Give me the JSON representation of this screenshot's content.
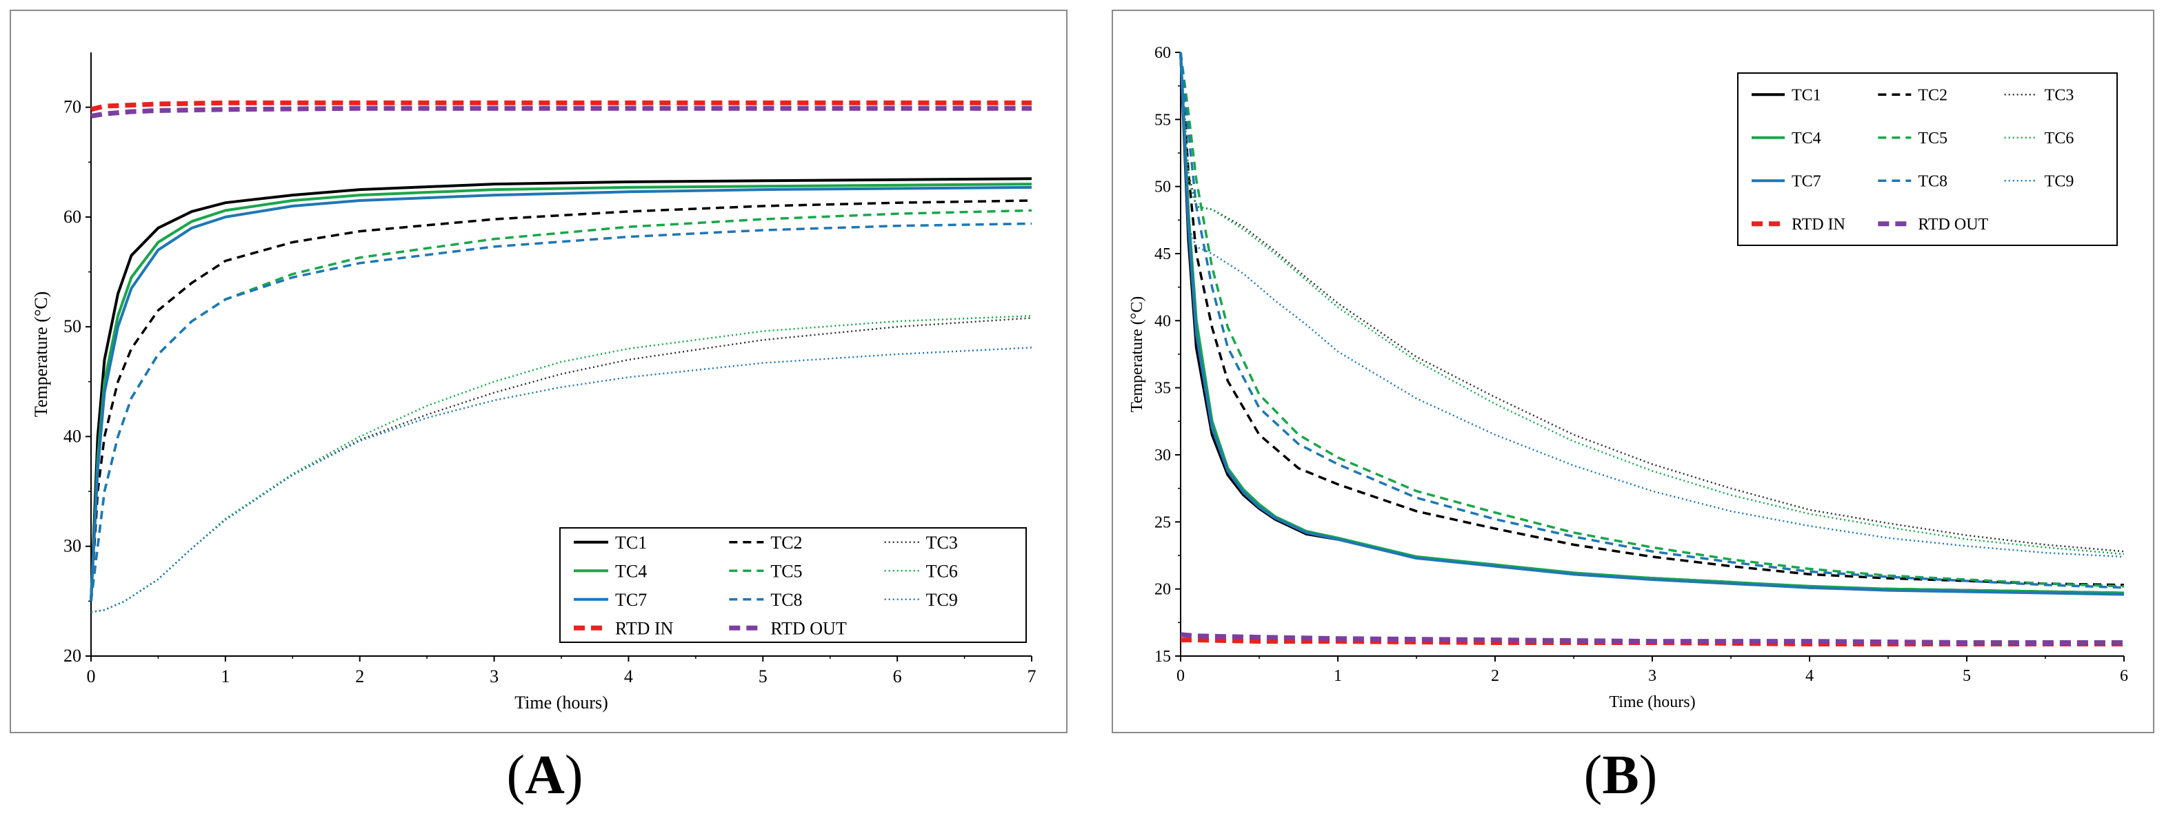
{
  "figure": {
    "panel_a_label": "A",
    "panel_b_label": "B"
  },
  "chart_data": [
    {
      "id": "A",
      "type": "line",
      "title": "",
      "xlabel": "Time (hours)",
      "ylabel": "Temperature (°C)",
      "xlim": [
        0,
        7
      ],
      "ylim": [
        20,
        75
      ],
      "xticks": [
        0,
        1,
        2,
        3,
        4,
        5,
        6,
        7
      ],
      "yticks": [
        20,
        30,
        40,
        50,
        60,
        70
      ],
      "legend": "bottom-right",
      "series": [
        {
          "name": "TC1",
          "color": "#000000",
          "dash": "solid",
          "x": [
            0,
            0.05,
            0.1,
            0.2,
            0.3,
            0.5,
            0.75,
            1,
            1.5,
            2,
            3,
            4,
            5,
            6,
            7
          ],
          "y": [
            25,
            40,
            47,
            53,
            56.5,
            59,
            60.5,
            61.3,
            62,
            62.5,
            63,
            63.2,
            63.3,
            63.4,
            63.5
          ]
        },
        {
          "name": "TC2",
          "color": "#000000",
          "dash": "dashed",
          "x": [
            0,
            0.05,
            0.1,
            0.2,
            0.3,
            0.5,
            0.75,
            1,
            1.5,
            2,
            3,
            4,
            5,
            6,
            7
          ],
          "y": [
            25,
            35,
            40,
            45,
            48,
            51.5,
            54,
            56,
            57.7,
            58.7,
            59.8,
            60.5,
            61,
            61.3,
            61.5
          ]
        },
        {
          "name": "TC3",
          "color": "#333333",
          "dash": "dotted",
          "x": [
            0,
            0.1,
            0.25,
            0.5,
            0.75,
            1,
            1.5,
            2,
            2.5,
            3,
            3.5,
            4,
            5,
            6,
            7
          ],
          "y": [
            24,
            24.2,
            25,
            27,
            29.8,
            32.5,
            36.5,
            39.7,
            42,
            44,
            45.7,
            47,
            48.8,
            50,
            50.8
          ]
        },
        {
          "name": "TC4",
          "color": "#1aa64a",
          "dash": "solid",
          "x": [
            0,
            0.05,
            0.1,
            0.2,
            0.3,
            0.5,
            0.75,
            1,
            1.5,
            2,
            3,
            4,
            5,
            6,
            7
          ],
          "y": [
            25,
            38,
            45,
            51,
            54.5,
            57.7,
            59.6,
            60.6,
            61.5,
            62,
            62.5,
            62.7,
            62.8,
            62.9,
            63
          ]
        },
        {
          "name": "TC5",
          "color": "#1aa64a",
          "dash": "dashed",
          "x": [
            0,
            0.05,
            0.1,
            0.2,
            0.3,
            0.5,
            0.75,
            1,
            1.5,
            2,
            3,
            4,
            5,
            6,
            7
          ],
          "y": [
            25,
            30,
            35,
            40,
            43.5,
            47.5,
            50.5,
            52.5,
            54.8,
            56.3,
            58,
            59.1,
            59.8,
            60.3,
            60.6
          ]
        },
        {
          "name": "TC6",
          "color": "#1aa64a",
          "dash": "dotted",
          "x": [
            0,
            0.1,
            0.25,
            0.5,
            0.75,
            1,
            1.5,
            2,
            2.5,
            3,
            3.5,
            4,
            5,
            6,
            7
          ],
          "y": [
            24,
            24.2,
            25,
            27,
            29.8,
            32.5,
            36.6,
            40,
            42.8,
            45,
            46.8,
            48,
            49.6,
            50.5,
            51
          ]
        },
        {
          "name": "TC7",
          "color": "#1f77b4",
          "dash": "solid",
          "x": [
            0,
            0.05,
            0.1,
            0.2,
            0.3,
            0.5,
            0.75,
            1,
            1.5,
            2,
            3,
            4,
            5,
            6,
            7
          ],
          "y": [
            25,
            37,
            44,
            50,
            53.5,
            57,
            59,
            60,
            61,
            61.5,
            62,
            62.3,
            62.5,
            62.6,
            62.7
          ]
        },
        {
          "name": "TC8",
          "color": "#1f77b4",
          "dash": "dashed",
          "x": [
            0,
            0.05,
            0.1,
            0.2,
            0.3,
            0.5,
            0.75,
            1,
            1.5,
            2,
            3,
            4,
            5,
            6,
            7
          ],
          "y": [
            25,
            30,
            35,
            40,
            43.5,
            47.5,
            50.5,
            52.5,
            54.5,
            55.8,
            57.3,
            58.2,
            58.8,
            59.2,
            59.4
          ]
        },
        {
          "name": "TC9",
          "color": "#1f77b4",
          "dash": "dotted",
          "x": [
            0,
            0.1,
            0.25,
            0.5,
            0.75,
            1,
            1.5,
            2,
            2.5,
            3,
            3.5,
            4,
            5,
            6,
            7
          ],
          "y": [
            24,
            24.2,
            25,
            27,
            29.8,
            32.4,
            36.5,
            39.6,
            41.7,
            43.3,
            44.5,
            45.4,
            46.7,
            47.5,
            48.1
          ]
        },
        {
          "name": "RTD IN",
          "color": "#e8231f",
          "dash": "bigdash",
          "x": [
            0,
            0.1,
            0.3,
            0.5,
            1,
            2,
            3,
            4,
            5,
            6,
            7
          ],
          "y": [
            69.8,
            70.1,
            70.2,
            70.3,
            70.4,
            70.4,
            70.4,
            70.4,
            70.4,
            70.4,
            70.4
          ]
        },
        {
          "name": "RTD OUT",
          "color": "#7b3fa0",
          "dash": "bigdash",
          "x": [
            0,
            0.1,
            0.3,
            0.5,
            1,
            2,
            3,
            4,
            5,
            6,
            7
          ],
          "y": [
            69.2,
            69.4,
            69.6,
            69.7,
            69.8,
            69.9,
            69.9,
            69.9,
            69.9,
            69.9,
            69.9
          ]
        }
      ]
    },
    {
      "id": "B",
      "type": "line",
      "title": "",
      "xlabel": "Time (hours)",
      "ylabel": "Temperature (°C)",
      "xlim": [
        0,
        6
      ],
      "ylim": [
        15,
        60
      ],
      "xticks": [
        0,
        1,
        2,
        3,
        4,
        5,
        6
      ],
      "yticks": [
        15,
        20,
        25,
        30,
        35,
        40,
        45,
        50,
        55,
        60
      ],
      "legend": "top-right",
      "series": [
        {
          "name": "TC1",
          "color": "#000000",
          "dash": "solid",
          "x": [
            0,
            0.05,
            0.1,
            0.2,
            0.3,
            0.4,
            0.5,
            0.6,
            0.8,
            1,
            1.5,
            2,
            2.5,
            3,
            3.5,
            4,
            4.5,
            5,
            5.5,
            6
          ],
          "y": [
            60,
            46,
            38,
            31.5,
            28.5,
            27,
            26,
            25.2,
            24.1,
            23.7,
            22.3,
            21.8,
            21.1,
            20.8,
            20.5,
            20.1,
            20,
            19.9,
            19.8,
            19.7
          ]
        },
        {
          "name": "TC2",
          "color": "#000000",
          "dash": "dashed",
          "x": [
            0,
            0.05,
            0.1,
            0.2,
            0.3,
            0.5,
            0.75,
            1,
            1.5,
            2,
            2.5,
            3,
            3.5,
            4,
            4.5,
            5,
            5.5,
            6
          ],
          "y": [
            60,
            51,
            45,
            39.5,
            35.5,
            31.5,
            29,
            27.8,
            25.8,
            24.5,
            23.3,
            22.4,
            21.7,
            21.1,
            20.8,
            20.6,
            20.4,
            20.3
          ]
        },
        {
          "name": "TC3",
          "color": "#333333",
          "dash": "dotted",
          "x": [
            0,
            0.05,
            0.1,
            0.2,
            0.4,
            0.6,
            0.8,
            1,
            1.5,
            2,
            2.5,
            3,
            3.5,
            4,
            4.5,
            5,
            5.5,
            6
          ],
          "y": [
            60,
            51,
            48.5,
            48.3,
            47,
            45.2,
            43.2,
            41.3,
            37.3,
            34.3,
            31.5,
            29.3,
            27.5,
            25.9,
            24.9,
            24,
            23.3,
            22.8
          ]
        },
        {
          "name": "TC4",
          "color": "#1aa64a",
          "dash": "solid",
          "x": [
            0,
            0.05,
            0.1,
            0.2,
            0.3,
            0.4,
            0.5,
            0.6,
            0.8,
            1,
            1.5,
            2,
            2.5,
            3,
            3.5,
            4,
            4.5,
            5,
            5.5,
            6
          ],
          "y": [
            60,
            48,
            40,
            32.5,
            29,
            27.4,
            26.3,
            25.4,
            24.3,
            23.8,
            22.4,
            21.8,
            21.2,
            20.8,
            20.5,
            20.2,
            20,
            19.9,
            19.8,
            19.7
          ]
        },
        {
          "name": "TC5",
          "color": "#1aa64a",
          "dash": "dashed",
          "x": [
            0,
            0.05,
            0.1,
            0.2,
            0.3,
            0.5,
            0.75,
            1,
            1.5,
            2,
            2.5,
            3,
            3.5,
            4,
            4.5,
            5,
            5.5,
            6
          ],
          "y": [
            60,
            55.5,
            50.5,
            44,
            39.5,
            34.5,
            31.5,
            29.8,
            27.3,
            25.7,
            24.2,
            23.1,
            22.2,
            21.5,
            21,
            20.7,
            20.4,
            20.2
          ]
        },
        {
          "name": "TC6",
          "color": "#1aa64a",
          "dash": "dotted",
          "x": [
            0,
            0.05,
            0.1,
            0.2,
            0.4,
            0.6,
            0.8,
            1,
            1.5,
            2,
            2.5,
            3,
            3.5,
            4,
            4.5,
            5,
            5.5,
            6
          ],
          "y": [
            60,
            50.5,
            48.5,
            48.3,
            46.8,
            45,
            43,
            41,
            37,
            33.8,
            31,
            28.8,
            27,
            25.6,
            24.6,
            23.7,
            23.1,
            22.6
          ]
        },
        {
          "name": "TC7",
          "color": "#1f77b4",
          "dash": "solid",
          "x": [
            0,
            0.05,
            0.1,
            0.2,
            0.3,
            0.4,
            0.5,
            0.6,
            0.8,
            1,
            1.5,
            2,
            2.5,
            3,
            3.5,
            4,
            4.5,
            5,
            5.5,
            6
          ],
          "y": [
            60,
            47,
            39,
            32,
            28.8,
            27.2,
            26.1,
            25.3,
            24.2,
            23.7,
            22.3,
            21.7,
            21.1,
            20.7,
            20.4,
            20.1,
            19.9,
            19.8,
            19.7,
            19.6
          ]
        },
        {
          "name": "TC8",
          "color": "#1f77b4",
          "dash": "dashed",
          "x": [
            0,
            0.05,
            0.1,
            0.2,
            0.3,
            0.5,
            0.75,
            1,
            1.5,
            2,
            2.5,
            3,
            3.5,
            4,
            4.5,
            5,
            5.5,
            6
          ],
          "y": [
            60,
            54,
            48.5,
            42.5,
            38,
            33.5,
            30.8,
            29.3,
            26.8,
            25.2,
            23.9,
            22.8,
            22,
            21.3,
            20.9,
            20.6,
            20.3,
            20.1
          ]
        },
        {
          "name": "TC9",
          "color": "#1f77b4",
          "dash": "dotted",
          "x": [
            0,
            0.05,
            0.1,
            0.2,
            0.4,
            0.6,
            0.8,
            1,
            1.5,
            2,
            2.5,
            3,
            3.5,
            4,
            4.5,
            5,
            5.5,
            6
          ],
          "y": [
            60,
            47,
            45.5,
            45,
            43.5,
            41.5,
            39.7,
            37.7,
            34.2,
            31.5,
            29.2,
            27.3,
            25.8,
            24.7,
            23.8,
            23.2,
            22.7,
            22.4
          ]
        },
        {
          "name": "RTD IN",
          "color": "#e8231f",
          "dash": "bigdash",
          "x": [
            0,
            0.1,
            0.5,
            1,
            2,
            3,
            4,
            5,
            6
          ],
          "y": [
            16.2,
            16.2,
            16.1,
            16.1,
            16,
            16,
            15.9,
            15.9,
            15.9
          ]
        },
        {
          "name": "RTD OUT",
          "color": "#7b3fa0",
          "dash": "bigdash",
          "x": [
            0,
            0.1,
            0.5,
            1,
            2,
            3,
            4,
            5,
            6
          ],
          "y": [
            16.6,
            16.5,
            16.4,
            16.3,
            16.2,
            16.1,
            16.1,
            16,
            16
          ]
        }
      ]
    }
  ]
}
